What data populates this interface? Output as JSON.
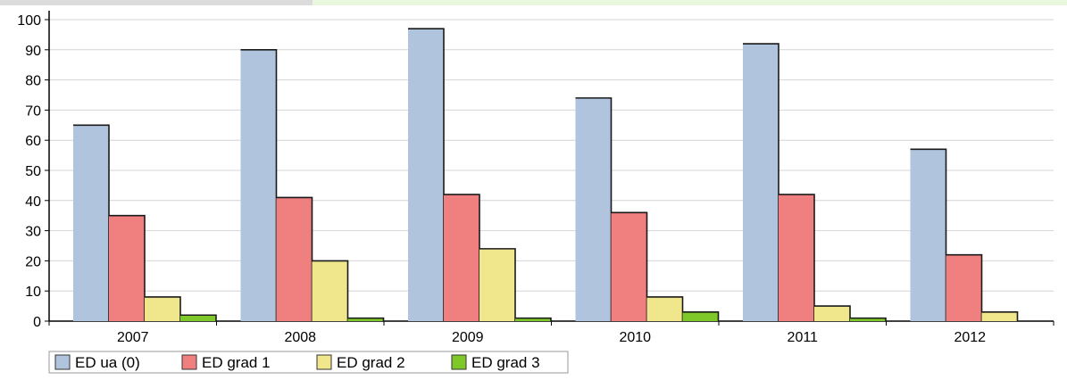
{
  "chart_data": {
    "type": "bar",
    "categories": [
      "2007",
      "2008",
      "2009",
      "2010",
      "2011",
      "2012"
    ],
    "series": [
      {
        "name": "ED ua (0)",
        "color": "#b0c4de",
        "values": [
          65,
          90,
          97,
          74,
          92,
          57
        ]
      },
      {
        "name": "ED grad 1",
        "color": "#f08080",
        "values": [
          35,
          41,
          42,
          36,
          42,
          22
        ]
      },
      {
        "name": "ED grad 2",
        "color": "#f0e68c",
        "values": [
          8,
          20,
          24,
          8,
          5,
          3
        ]
      },
      {
        "name": "ED grad 3",
        "color": "#7ec82a",
        "values": [
          2,
          1,
          1,
          3,
          1,
          0
        ]
      }
    ],
    "yticks": [
      0,
      10,
      20,
      30,
      40,
      50,
      60,
      70,
      80,
      90,
      100
    ],
    "ylim": [
      0,
      100
    ],
    "grid": true,
    "legend": "bottom-left"
  }
}
